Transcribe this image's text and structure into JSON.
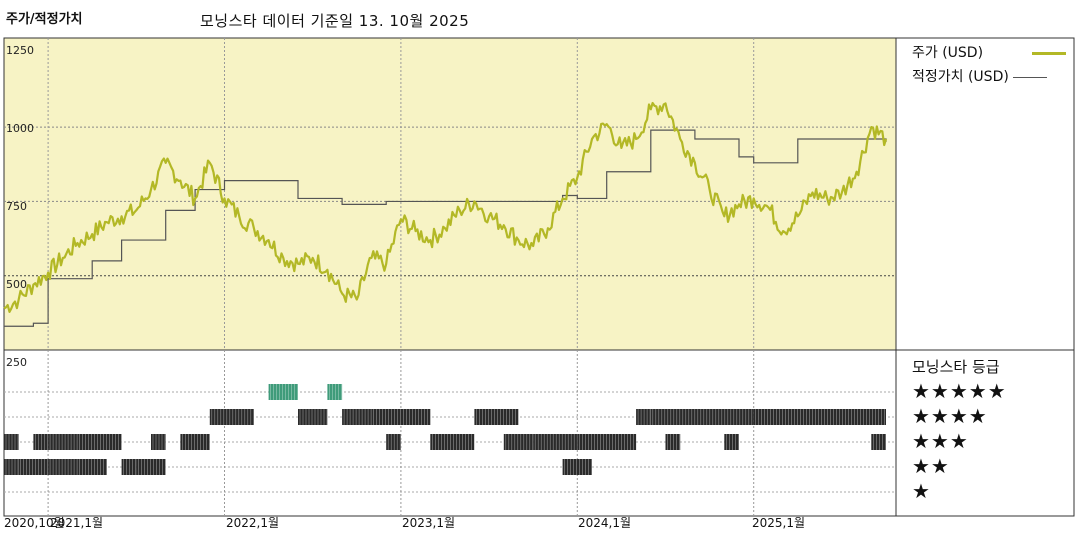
{
  "header": {
    "title_left": "주가/적정가치",
    "title_center": "모닝스타 데이터 기준일 13. 10월 2025"
  },
  "colors": {
    "price": "#b3b826",
    "fair": "#555555",
    "panel_bg": "#f7f3c5",
    "green_bar": "#3f9b7a",
    "dark_bar": "#2a2a2a"
  },
  "legend": {
    "price_label": "주가 (USD)",
    "fair_label": "적정가치 (USD)",
    "rating_title": "모닝스타 등급"
  },
  "star_rows": [
    "★★★★★",
    "★★★★",
    "★★★",
    "★★",
    "★"
  ],
  "y_ticks": [
    "1250",
    "1000",
    "750",
    "500",
    "250"
  ],
  "x_ticks": [
    "2020,10월",
    "2021,1월",
    "2022,1월",
    "2023,1월",
    "2024,1월",
    "2025,1월"
  ],
  "chart_data": {
    "type": "line",
    "x_range": [
      "2020-10",
      "2025-10"
    ],
    "ylim": [
      250,
      1300
    ],
    "series": [
      {
        "name": "주가 (USD)",
        "color": "#b3b826",
        "points": [
          [
            "2020-10",
            390
          ],
          [
            "2020-11",
            420
          ],
          [
            "2020-12",
            470
          ],
          [
            "2021-01",
            510
          ],
          [
            "2021-02",
            560
          ],
          [
            "2021-03",
            610
          ],
          [
            "2021-04",
            640
          ],
          [
            "2021-05",
            680
          ],
          [
            "2021-06",
            700
          ],
          [
            "2021-07",
            720
          ],
          [
            "2021-08",
            790
          ],
          [
            "2021-09",
            880
          ],
          [
            "2021-10",
            820
          ],
          [
            "2021-11",
            760
          ],
          [
            "2021-12",
            880
          ],
          [
            "2022-01",
            760
          ],
          [
            "2022-02",
            700
          ],
          [
            "2022-03",
            660
          ],
          [
            "2022-04",
            620
          ],
          [
            "2022-05",
            560
          ],
          [
            "2022-06",
            540
          ],
          [
            "2022-07",
            560
          ],
          [
            "2022-08",
            520
          ],
          [
            "2022-09",
            440
          ],
          [
            "2022-10",
            420
          ],
          [
            "2022-11",
            560
          ],
          [
            "2022-12",
            540
          ],
          [
            "2023-01",
            690
          ],
          [
            "2023-02",
            650
          ],
          [
            "2023-03",
            620
          ],
          [
            "2023-04",
            660
          ],
          [
            "2023-05",
            720
          ],
          [
            "2023-06",
            750
          ],
          [
            "2023-07",
            700
          ],
          [
            "2023-08",
            670
          ],
          [
            "2023-09",
            620
          ],
          [
            "2023-10",
            600
          ],
          [
            "2023-11",
            660
          ],
          [
            "2023-12",
            760
          ],
          [
            "2024-01",
            830
          ],
          [
            "2024-02",
            960
          ],
          [
            "2024-03",
            1010
          ],
          [
            "2024-04",
            930
          ],
          [
            "2024-05",
            960
          ],
          [
            "2024-06",
            1060
          ],
          [
            "2024-07",
            1080
          ],
          [
            "2024-08",
            960
          ],
          [
            "2024-09",
            880
          ],
          [
            "2024-10",
            790
          ],
          [
            "2024-11",
            700
          ],
          [
            "2024-12",
            740
          ],
          [
            "2025-01",
            760
          ],
          [
            "2025-02",
            730
          ],
          [
            "2025-03",
            650
          ],
          [
            "2025-04",
            700
          ],
          [
            "2025-05",
            780
          ],
          [
            "2025-06",
            760
          ],
          [
            "2025-07",
            780
          ],
          [
            "2025-08",
            850
          ],
          [
            "2025-09",
            1000
          ],
          [
            "2025-10",
            960
          ]
        ]
      },
      {
        "name": "적정가치 (USD)",
        "color": "#555555",
        "points": [
          [
            "2020-10",
            330
          ],
          [
            "2020-12",
            340
          ],
          [
            "2021-01",
            490
          ],
          [
            "2021-04",
            550
          ],
          [
            "2021-06",
            620
          ],
          [
            "2021-09",
            720
          ],
          [
            "2021-11",
            790
          ],
          [
            "2022-01",
            820
          ],
          [
            "2022-06",
            760
          ],
          [
            "2022-09",
            740
          ],
          [
            "2022-12",
            750
          ],
          [
            "2023-01",
            750
          ],
          [
            "2023-06",
            750
          ],
          [
            "2023-12",
            770
          ],
          [
            "2024-01",
            760
          ],
          [
            "2024-03",
            850
          ],
          [
            "2024-06",
            990
          ],
          [
            "2024-09",
            960
          ],
          [
            "2024-12",
            900
          ],
          [
            "2025-01",
            880
          ],
          [
            "2025-03",
            880
          ],
          [
            "2025-04",
            960
          ],
          [
            "2025-06",
            960
          ],
          [
            "2025-10",
            950
          ]
        ]
      }
    ],
    "rating_ticks": [
      {
        "stars": 5,
        "ranges": [
          [
            "2022-04",
            "2022-06"
          ],
          [
            "2022-08",
            "2022-09"
          ]
        ]
      },
      {
        "stars": 4,
        "ranges": [
          [
            "2021-12",
            "2022-03"
          ],
          [
            "2022-06",
            "2022-08"
          ],
          [
            "2022-09",
            "2022-11"
          ],
          [
            "2022-11",
            "2023-03"
          ],
          [
            "2023-06",
            "2023-09"
          ],
          [
            "2024-05",
            "2024-06"
          ],
          [
            "2024-06",
            "2025-01"
          ],
          [
            "2025-01",
            "2025-10"
          ]
        ]
      },
      {
        "stars": 3,
        "ranges": [
          [
            "2020-10",
            "2020-11"
          ],
          [
            "2020-12",
            "2021-01"
          ],
          [
            "2021-01",
            "2021-03"
          ],
          [
            "2021-03",
            "2021-06"
          ],
          [
            "2021-08",
            "2021-09"
          ],
          [
            "2021-10",
            "2021-12"
          ],
          [
            "2022-12",
            "2023-01"
          ],
          [
            "2023-03",
            "2023-06"
          ],
          [
            "2023-08",
            "2023-10"
          ],
          [
            "2023-10",
            "2024-01"
          ],
          [
            "2024-01",
            "2024-05"
          ],
          [
            "2024-07",
            "2024-08"
          ],
          [
            "2024-11",
            "2024-12"
          ],
          [
            "2025-09",
            "2025-10"
          ]
        ]
      },
      {
        "stars": 2,
        "ranges": [
          [
            "2020-10",
            "2020-11"
          ],
          [
            "2020-11",
            "2021-01"
          ],
          [
            "2021-01",
            "2021-03"
          ],
          [
            "2021-03",
            "2021-05"
          ],
          [
            "2021-06",
            "2021-07"
          ],
          [
            "2021-07",
            "2021-09"
          ],
          [
            "2023-12",
            "2024-02"
          ]
        ]
      }
    ]
  }
}
